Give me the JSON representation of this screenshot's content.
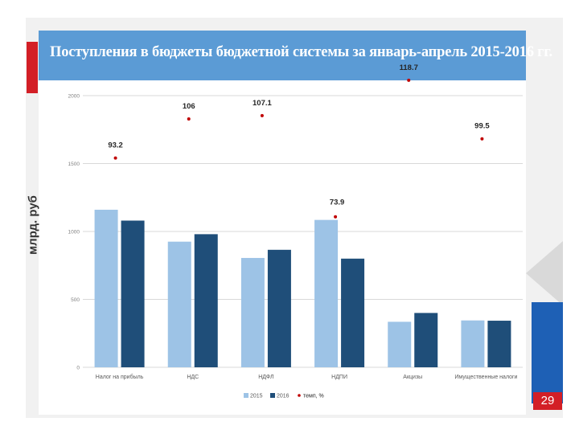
{
  "title": "Поступления в бюджеты бюджетной системы за январь-апрель 2015-2016 гг.",
  "page_number": "29",
  "colors": {
    "title_band": "#5b9bd5",
    "series_2015": "#9dc3e6",
    "series_2016": "#1f4e79",
    "growth_marker": "#c00000",
    "accent_red": "#d31f26",
    "accent_blue": "#1e60b5"
  },
  "chart_data": {
    "type": "bar",
    "title": "Поступления в бюджеты бюджетной системы за январь-апрель 2015-2016 гг.",
    "ylabel": "млрд. руб",
    "xlabel": "",
    "ylim": [
      0,
      2000
    ],
    "yticks": [
      0,
      500,
      1000,
      1500,
      2000
    ],
    "grid": true,
    "legend_position": "bottom-center",
    "categories": [
      "Налог на прибыль",
      "НДС",
      "НДФЛ",
      "НДПИ",
      "Акцизы",
      "Имущественные налоги"
    ],
    "series": [
      {
        "name": "2015",
        "values": [
          1160,
          925,
          805,
          1085,
          335,
          345
        ]
      },
      {
        "name": "2016",
        "values": [
          1080,
          980,
          865,
          800,
          400,
          343
        ]
      }
    ],
    "growth": {
      "name": "темп, %",
      "values": [
        93.2,
        106,
        107.1,
        73.9,
        118.7,
        99.5
      ],
      "labels": [
        "93.2",
        "106",
        "107.1",
        "73.9",
        "118.7",
        "99.5"
      ]
    }
  }
}
